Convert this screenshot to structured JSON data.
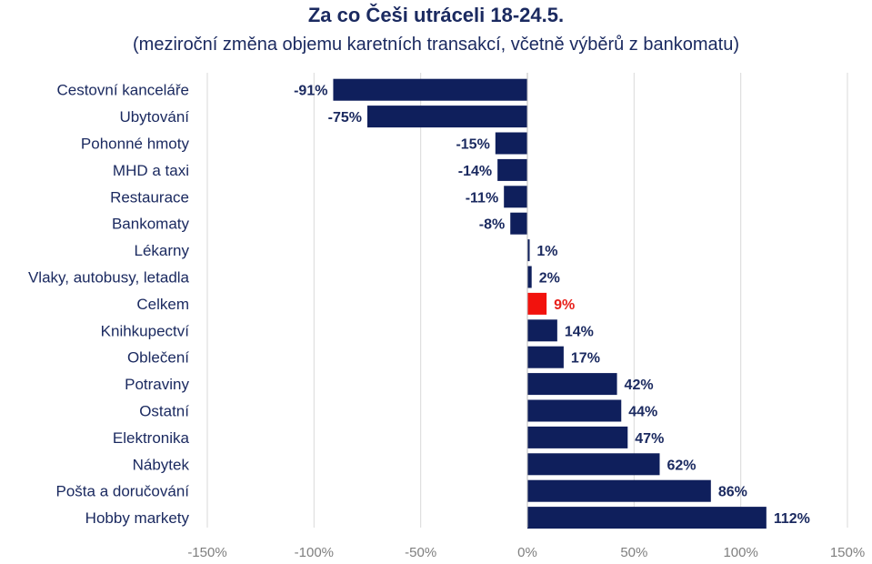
{
  "chart_data": {
    "type": "bar",
    "orientation": "horizontal",
    "title": "Za co Češi utráceli 18-24.5.",
    "subtitle": "(meziroční změna objemu karetních transakcí, včetně výběrů z bankomatu)",
    "categories": [
      "Cestovní kanceláře",
      "Ubytování",
      "Pohonné hmoty",
      "MHD a taxi",
      "Restaurace",
      "Bankomaty",
      "Lékarny",
      "Vlaky, autobusy, letadla",
      "Celkem",
      "Knihkupectví",
      "Oblečení",
      "Potraviny",
      "Ostatní",
      "Elektronika",
      "Nábytek",
      "Pošta a doručování",
      "Hobby markety"
    ],
    "values": [
      -91,
      -75,
      -15,
      -14,
      -11,
      -8,
      1,
      2,
      9,
      14,
      17,
      42,
      44,
      47,
      62,
      86,
      112
    ],
    "value_labels": [
      "-91%",
      "-75%",
      "-15%",
      "-14%",
      "-11%",
      "-8%",
      "1%",
      "2%",
      "9%",
      "14%",
      "17%",
      "42%",
      "44%",
      "47%",
      "62%",
      "86%",
      "112%"
    ],
    "highlight_category": "Celkem",
    "xlim": [
      -150,
      150
    ],
    "xticks": [
      -150,
      -100,
      -50,
      0,
      50,
      100,
      150
    ],
    "xtick_labels": [
      "-150%",
      "-100%",
      "-50%",
      "0%",
      "50%",
      "100%",
      "150%"
    ],
    "grid": true,
    "legend": "none",
    "colors": {
      "bar": "#0f1f5c",
      "highlight_bar": "#f2120d",
      "highlight_label": "#e8201b",
      "text": "#1b2a60",
      "grid": "#d9d9d9",
      "tick": "#7f7f7f"
    }
  }
}
